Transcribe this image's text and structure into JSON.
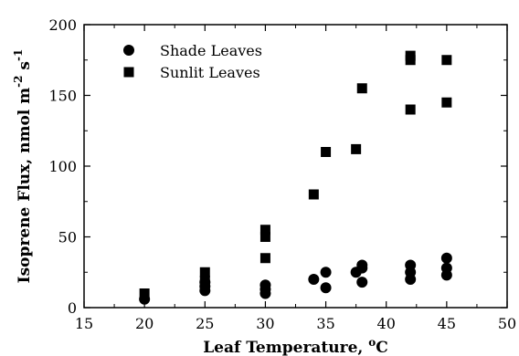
{
  "chart_data": {
    "type": "scatter",
    "title": "",
    "xlabel": "Leaf Temperature, ",
    "xlabel_unit": "oC",
    "ylabel": "Isoprene Flux, nmol m",
    "ylabel_exp1": "-2",
    "ylabel_mid": " s",
    "ylabel_exp2": "-1",
    "xlim": [
      15,
      50
    ],
    "ylim": [
      0,
      200
    ],
    "xticks": [
      15,
      20,
      25,
      30,
      35,
      40,
      45,
      50
    ],
    "yticks": [
      0,
      50,
      100,
      150,
      200
    ],
    "grid": false,
    "legend_position": "top-left",
    "series": [
      {
        "name": "Shade Leaves",
        "marker": "circle",
        "color": "#000000",
        "points": [
          {
            "x": 20,
            "y": 6
          },
          {
            "x": 25,
            "y": 12
          },
          {
            "x": 25,
            "y": 15
          },
          {
            "x": 25,
            "y": 18
          },
          {
            "x": 30,
            "y": 10
          },
          {
            "x": 30,
            "y": 13
          },
          {
            "x": 30,
            "y": 16
          },
          {
            "x": 34,
            "y": 20
          },
          {
            "x": 35,
            "y": 14
          },
          {
            "x": 35,
            "y": 25
          },
          {
            "x": 37.5,
            "y": 25
          },
          {
            "x": 38,
            "y": 18
          },
          {
            "x": 38,
            "y": 28
          },
          {
            "x": 38,
            "y": 30
          },
          {
            "x": 42,
            "y": 20
          },
          {
            "x": 42,
            "y": 25
          },
          {
            "x": 42,
            "y": 30
          },
          {
            "x": 45,
            "y": 23
          },
          {
            "x": 45,
            "y": 28
          },
          {
            "x": 45,
            "y": 35
          }
        ]
      },
      {
        "name": "Sunlit Leaves",
        "marker": "square",
        "color": "#000000",
        "points": [
          {
            "x": 20,
            "y": 10
          },
          {
            "x": 25,
            "y": 19
          },
          {
            "x": 25,
            "y": 25
          },
          {
            "x": 30,
            "y": 35
          },
          {
            "x": 30,
            "y": 50
          },
          {
            "x": 30,
            "y": 55
          },
          {
            "x": 34,
            "y": 80
          },
          {
            "x": 35,
            "y": 110
          },
          {
            "x": 37.5,
            "y": 112
          },
          {
            "x": 38,
            "y": 155
          },
          {
            "x": 42,
            "y": 140
          },
          {
            "x": 42,
            "y": 175
          },
          {
            "x": 42,
            "y": 178
          },
          {
            "x": 45,
            "y": 145
          },
          {
            "x": 45,
            "y": 175
          }
        ]
      }
    ]
  }
}
